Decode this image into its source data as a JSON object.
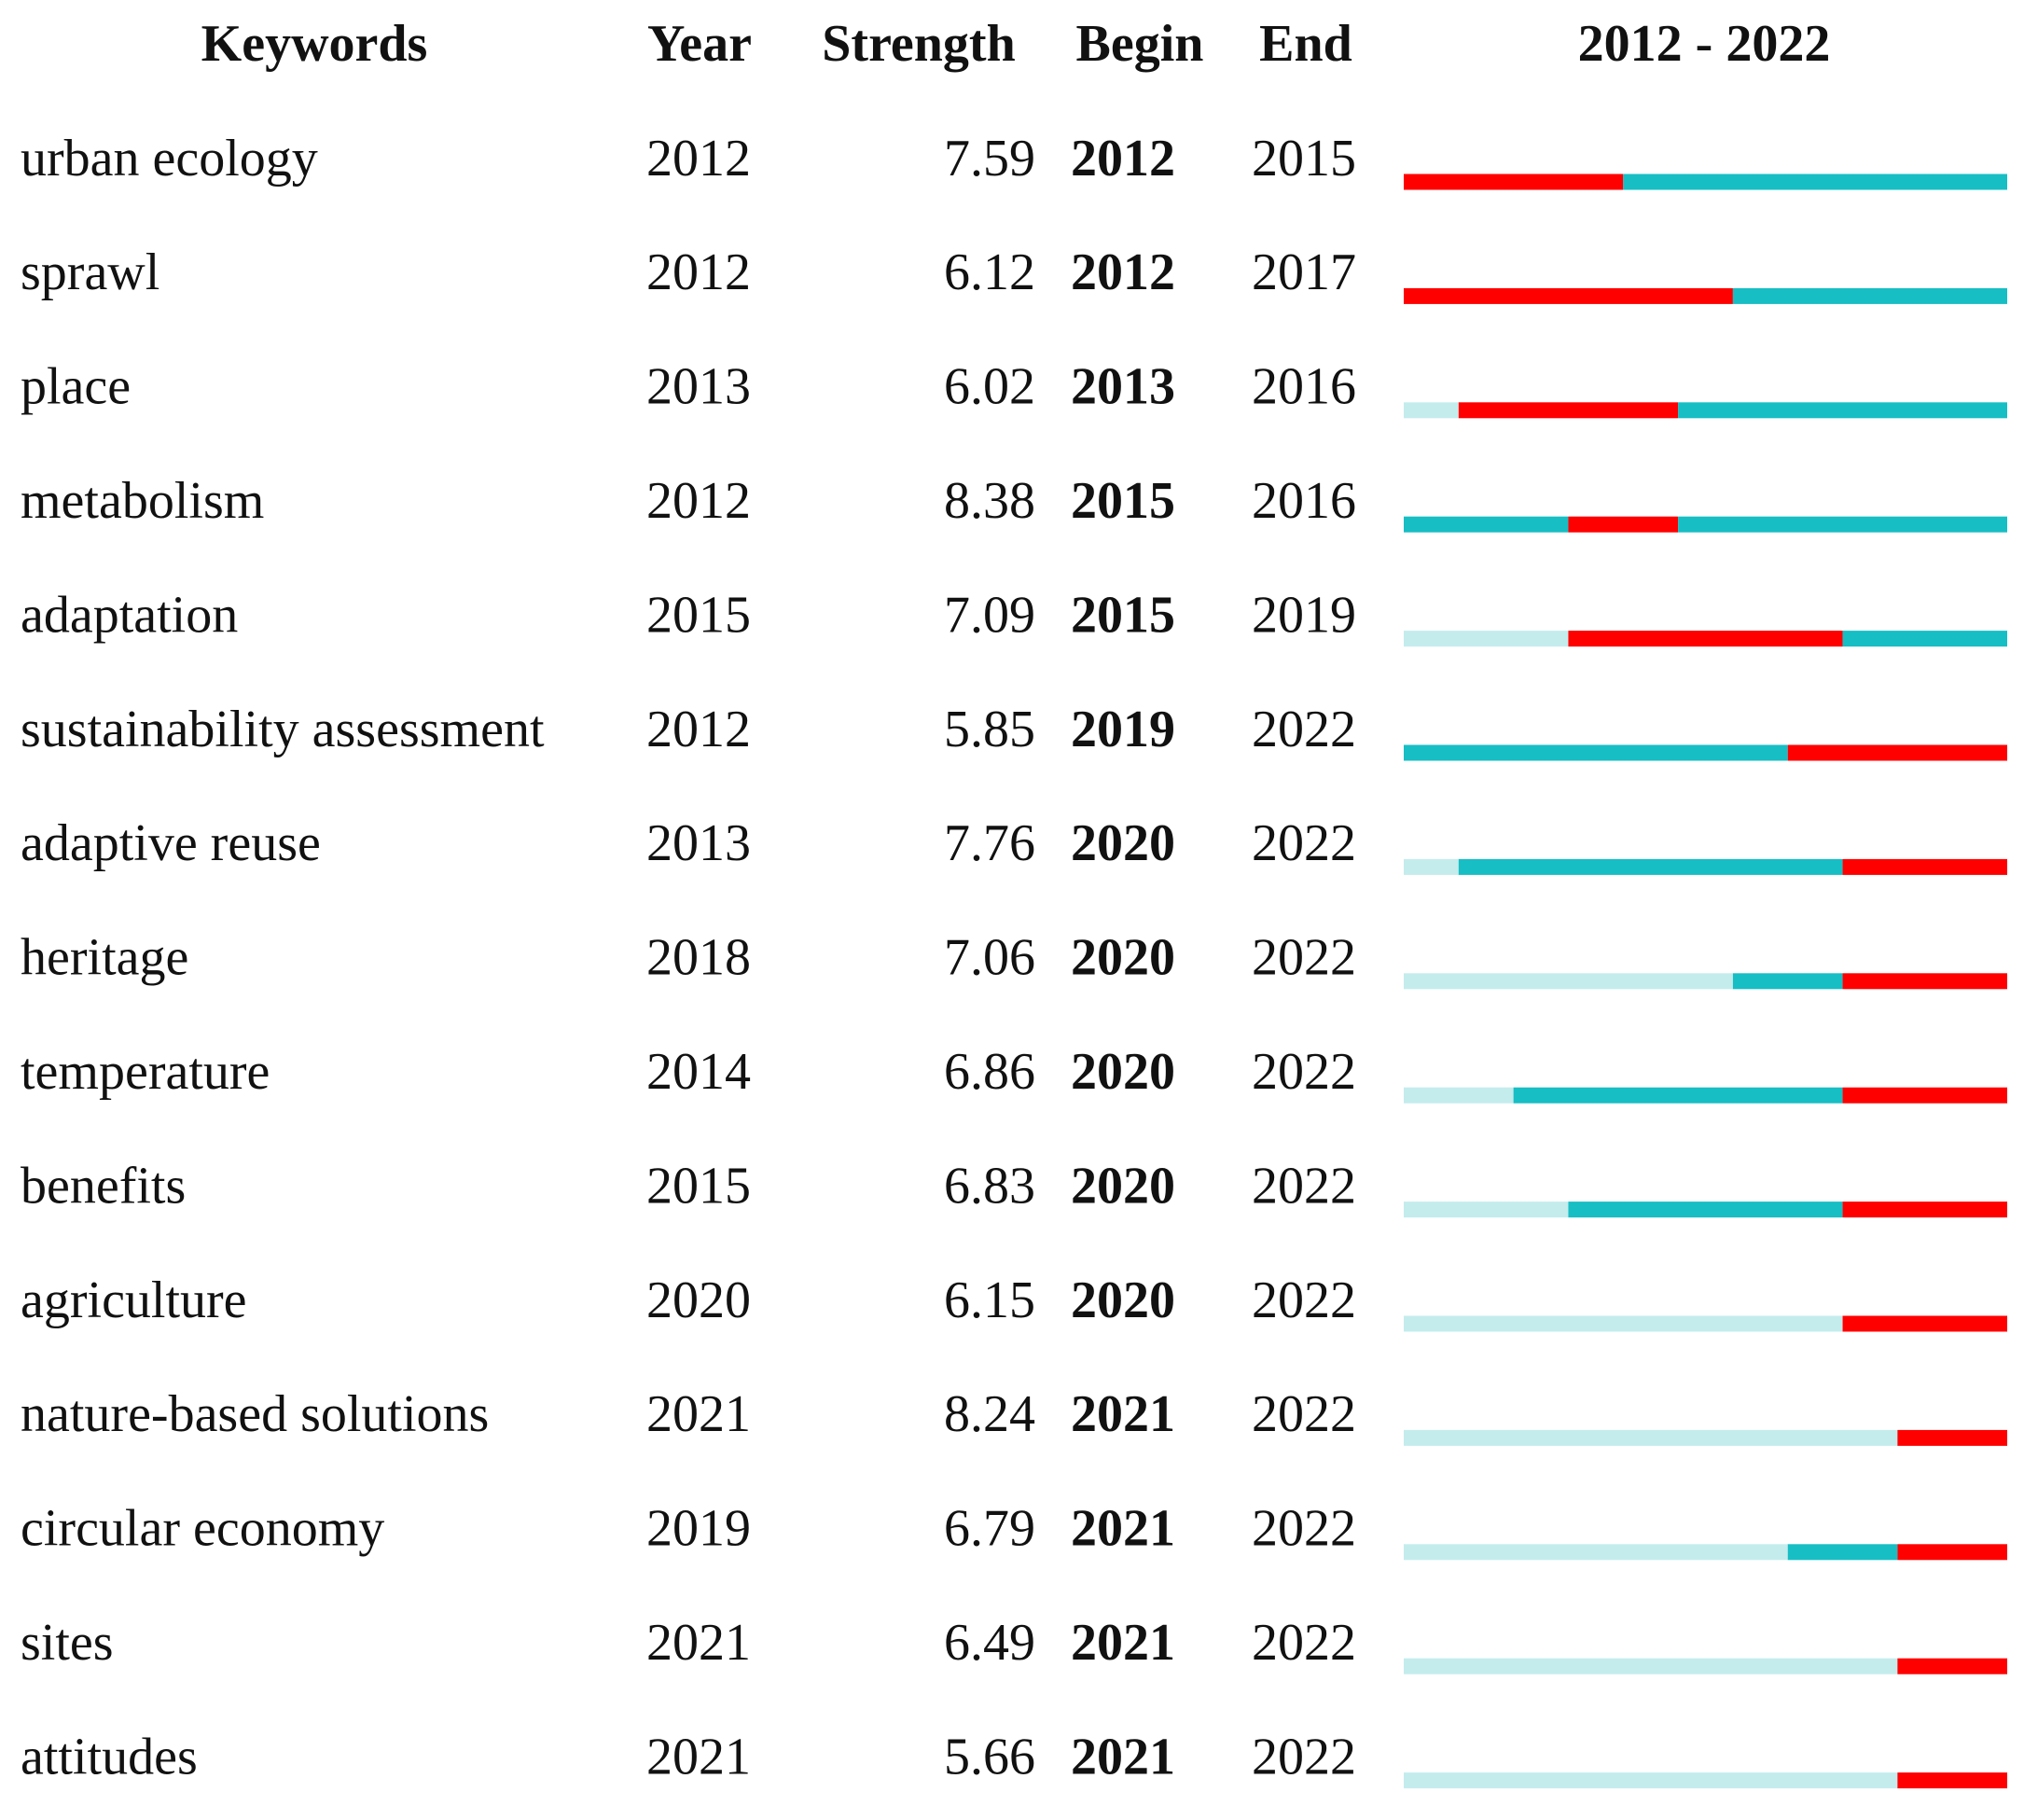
{
  "header": {
    "keywords": "Keywords",
    "year": "Year",
    "strength": "Strength",
    "begin": "Begin",
    "end": "End",
    "timeline": {
      "label": "2012 - 2022",
      "start": 2012,
      "end": 2022
    }
  },
  "rows": [
    {
      "keyword": "urban ecology",
      "year": 2012,
      "strength": 7.59,
      "begin": 2012,
      "end": 2015
    },
    {
      "keyword": "sprawl",
      "year": 2012,
      "strength": 6.12,
      "begin": 2012,
      "end": 2017
    },
    {
      "keyword": "place",
      "year": 2013,
      "strength": 6.02,
      "begin": 2013,
      "end": 2016
    },
    {
      "keyword": "metabolism",
      "year": 2012,
      "strength": 8.38,
      "begin": 2015,
      "end": 2016
    },
    {
      "keyword": "adaptation",
      "year": 2015,
      "strength": 7.09,
      "begin": 2015,
      "end": 2019
    },
    {
      "keyword": "sustainability assessment",
      "year": 2012,
      "strength": 5.85,
      "begin": 2019,
      "end": 2022
    },
    {
      "keyword": "adaptive reuse",
      "year": 2013,
      "strength": 7.76,
      "begin": 2020,
      "end": 2022
    },
    {
      "keyword": "heritage",
      "year": 2018,
      "strength": 7.06,
      "begin": 2020,
      "end": 2022
    },
    {
      "keyword": "temperature",
      "year": 2014,
      "strength": 6.86,
      "begin": 2020,
      "end": 2022
    },
    {
      "keyword": "benefits",
      "year": 2015,
      "strength": 6.83,
      "begin": 2020,
      "end": 2022
    },
    {
      "keyword": "agriculture",
      "year": 2020,
      "strength": 6.15,
      "begin": 2020,
      "end": 2022
    },
    {
      "keyword": "nature-based solutions",
      "year": 2021,
      "strength": 8.24,
      "begin": 2021,
      "end": 2022
    },
    {
      "keyword": "circular economy",
      "year": 2019,
      "strength": 6.79,
      "begin": 2021,
      "end": 2022
    },
    {
      "keyword": "sites",
      "year": 2021,
      "strength": 6.49,
      "begin": 2021,
      "end": 2022
    },
    {
      "keyword": "attitudes",
      "year": 2021,
      "strength": 5.66,
      "begin": 2021,
      "end": 2022
    }
  ]
}
